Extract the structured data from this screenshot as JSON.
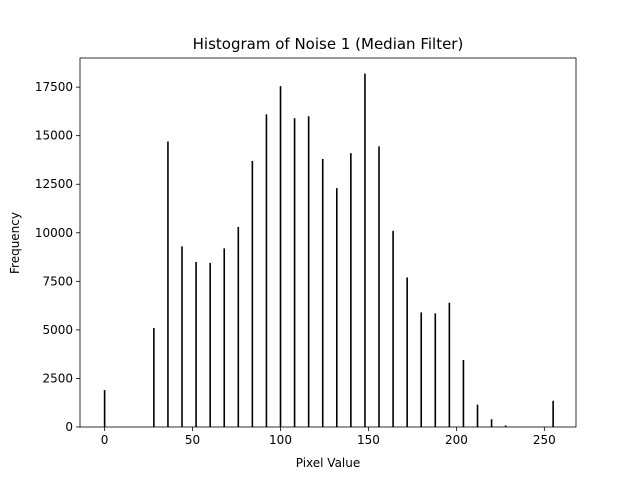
{
  "chart_data": {
    "type": "bar",
    "title": "Histogram of Noise 1 (Median Filter)",
    "xlabel": "Pixel Value",
    "ylabel": "Frequency",
    "xlim": [
      -14,
      268
    ],
    "ylim": [
      0,
      19000
    ],
    "xticks": [
      0,
      50,
      100,
      150,
      200,
      250
    ],
    "yticks": [
      0,
      2500,
      5000,
      7500,
      10000,
      12500,
      15000,
      17500
    ],
    "grid": false,
    "bar_color": "#000000",
    "x": [
      0,
      28,
      36,
      44,
      52,
      60,
      68,
      76,
      84,
      92,
      100,
      108,
      116,
      124,
      132,
      140,
      148,
      156,
      164,
      172,
      180,
      188,
      196,
      204,
      212,
      220,
      228,
      255
    ],
    "values": [
      1900,
      5100,
      14700,
      9300,
      8500,
      8450,
      9200,
      10300,
      13700,
      16100,
      17550,
      15900,
      16000,
      13800,
      12300,
      14100,
      18200,
      14450,
      10100,
      7700,
      5900,
      5850,
      6400,
      3450,
      1150,
      400,
      80,
      1350
    ]
  }
}
